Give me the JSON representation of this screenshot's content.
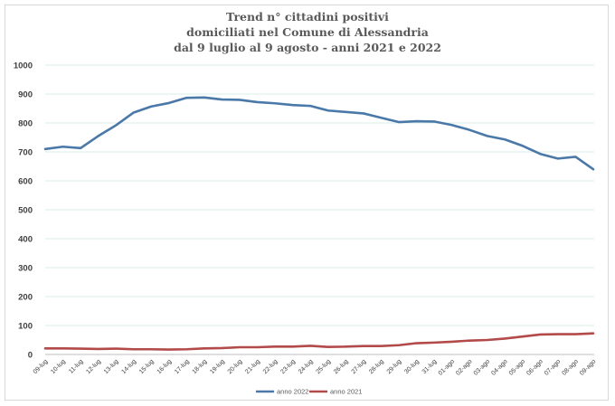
{
  "chart_data": {
    "type": "line",
    "title_lines": [
      "Trend n° cittadini positivi",
      "domiciliati nel Comune di Alessandria",
      "dal 9 luglio al 9 agosto - anni 2021 e 2022"
    ],
    "xlabel": "",
    "ylabel": "",
    "ylim": [
      0,
      1000
    ],
    "yticks": [
      0,
      100,
      200,
      300,
      400,
      500,
      600,
      700,
      800,
      900,
      1000
    ],
    "grid": true,
    "legend_position": "bottom",
    "categories": [
      "09-lug",
      "10-lug",
      "11-lug",
      "12-lug",
      "13-lug",
      "14-lug",
      "15-lug",
      "16-lug",
      "17-lug",
      "18-lug",
      "19-lug",
      "20-lug",
      "21-lug",
      "22-lug",
      "23-lug",
      "24-lug",
      "25-lug",
      "26-lug",
      "27-lug",
      "28-lug",
      "29-lug",
      "30-lug",
      "31-lug",
      "01-ago",
      "02-ago",
      "03-ago",
      "04-ago",
      "05-ago",
      "06-ago",
      "07-ago",
      "08-ago",
      "09-ago"
    ],
    "series": [
      {
        "name": "anno 2022",
        "color": "#4a78a8",
        "values": [
          710,
          718,
          713,
          755,
          792,
          836,
          857,
          869,
          887,
          888,
          881,
          880,
          872,
          868,
          862,
          859,
          843,
          838,
          833,
          818,
          803,
          806,
          805,
          793,
          776,
          755,
          743,
          721,
          693,
          677,
          683,
          640
        ]
      },
      {
        "name": "anno 2021",
        "color": "#b24a4a",
        "values": [
          21,
          21,
          20,
          19,
          20,
          18,
          18,
          17,
          18,
          21,
          22,
          25,
          25,
          27,
          27,
          30,
          26,
          27,
          29,
          29,
          32,
          39,
          41,
          44,
          48,
          50,
          55,
          62,
          69,
          70,
          70,
          73
        ]
      }
    ]
  }
}
